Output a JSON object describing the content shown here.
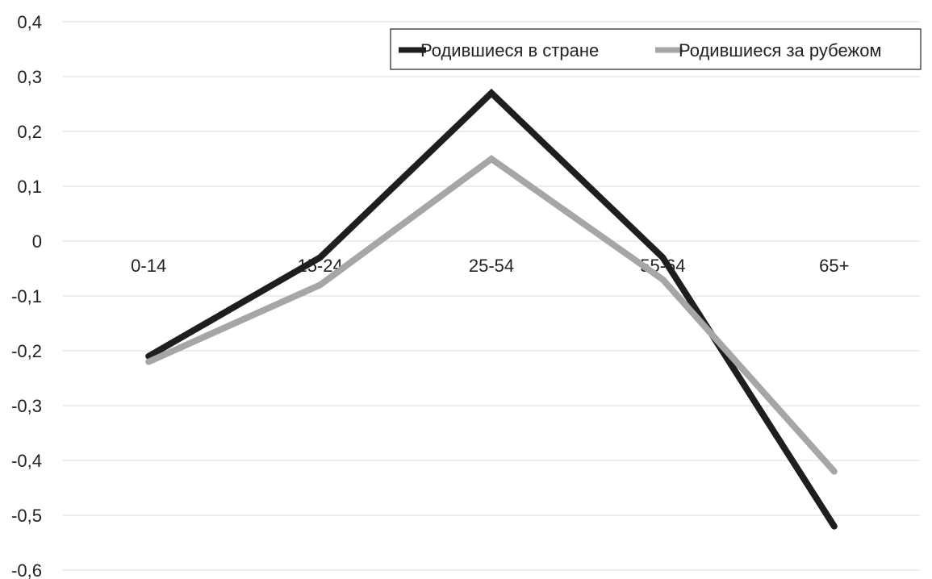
{
  "chart_data": {
    "type": "line",
    "title": "",
    "xlabel": "",
    "ylabel": "",
    "categories": [
      "0-14",
      "15-24",
      "25-54",
      "55-64",
      "65+"
    ],
    "series": [
      {
        "name": "Родившиеся в стране",
        "color": "#1e1e1e",
        "values": [
          -0.21,
          -0.03,
          0.27,
          -0.03,
          -0.52
        ]
      },
      {
        "name": "Родившиеся за рубежом",
        "color": "#a6a6a6",
        "values": [
          -0.22,
          -0.08,
          0.15,
          -0.07,
          -0.42
        ]
      }
    ],
    "ylim": [
      -0.6,
      0.4
    ],
    "y_ticks": [
      "0,4",
      "0,3",
      "0,2",
      "0,1",
      "0",
      "-0,1",
      "-0,2",
      "-0,3",
      "-0,4",
      "-0,5",
      "-0,6"
    ],
    "y_tick_values": [
      0.4,
      0.3,
      0.2,
      0.1,
      0,
      -0.1,
      -0.2,
      -0.3,
      -0.4,
      -0.5,
      -0.6
    ],
    "grid": true,
    "gridline_color": "#d9d9d9",
    "legend_position": "top-right"
  }
}
